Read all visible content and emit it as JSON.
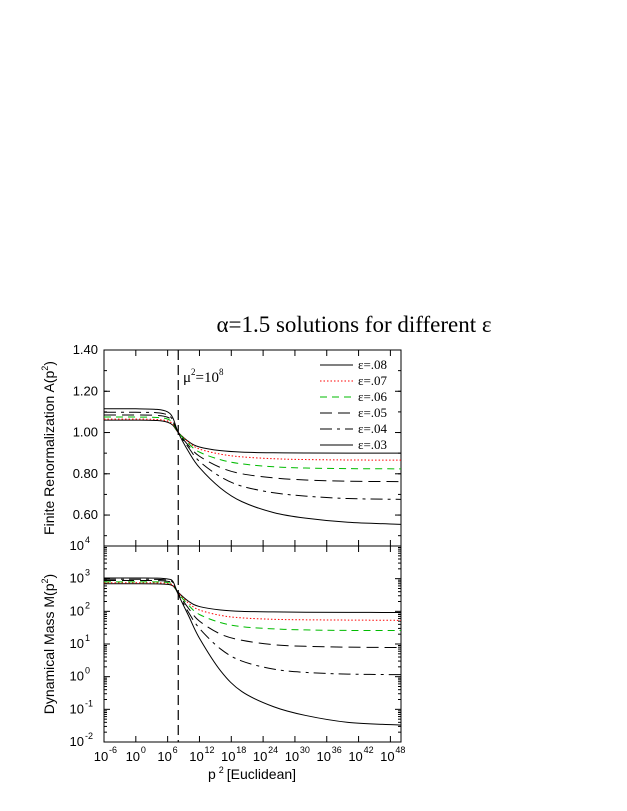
{
  "title": "α=1.5 solutions for different ε",
  "xlabel": "p 2 [Euclidean]",
  "annotation": "μ2=108",
  "chart_data": [
    {
      "type": "line",
      "panel": "top",
      "ylabel": "Finite Renormalization A(p2)",
      "xscale": "log10",
      "xlim": [
        -6,
        50
      ],
      "ylim": [
        0.45,
        1.4
      ],
      "yticks": [
        "0.60",
        "0.80",
        "1.00",
        "1.20",
        "1.40"
      ],
      "ytick_values": [
        0.6,
        0.8,
        1.0,
        1.2,
        1.4
      ],
      "xticks": [
        -6,
        0,
        6,
        12,
        18,
        24,
        30,
        36,
        42,
        48
      ],
      "vline_x": 8,
      "series": [
        {
          "name": "ε=.08",
          "color": "#000000",
          "dash": "",
          "log10_p2": [
            -6,
            0,
            4,
            6,
            7,
            8,
            10,
            12,
            16,
            20,
            26,
            32,
            40,
            50
          ],
          "values": [
            1.06,
            1.06,
            1.058,
            1.05,
            1.035,
            1.0,
            0.955,
            0.93,
            0.912,
            0.905,
            0.902,
            0.901,
            0.9,
            0.9
          ]
        },
        {
          "name": "ε=.07",
          "color": "#ff0000",
          "dash": "1.5,2",
          "log10_p2": [
            -6,
            0,
            4,
            6,
            7,
            8,
            10,
            12,
            16,
            20,
            26,
            32,
            40,
            50
          ],
          "values": [
            1.065,
            1.065,
            1.063,
            1.056,
            1.04,
            1.0,
            0.952,
            0.92,
            0.895,
            0.882,
            0.873,
            0.869,
            0.867,
            0.866
          ]
        },
        {
          "name": "ε=.06",
          "color": "#00bb00",
          "dash": "7,5",
          "log10_p2": [
            -6,
            0,
            4,
            6,
            7,
            8,
            10,
            12,
            16,
            20,
            26,
            32,
            40,
            50
          ],
          "values": [
            1.075,
            1.075,
            1.073,
            1.065,
            1.045,
            1.0,
            0.945,
            0.905,
            0.868,
            0.848,
            0.834,
            0.828,
            0.825,
            0.824
          ]
        },
        {
          "name": "ε=.05",
          "color": "#000000",
          "dash": "12,6",
          "log10_p2": [
            -6,
            0,
            4,
            6,
            7,
            8,
            10,
            12,
            16,
            20,
            26,
            32,
            40,
            50
          ],
          "values": [
            1.085,
            1.085,
            1.083,
            1.074,
            1.052,
            1.0,
            0.935,
            0.885,
            0.83,
            0.8,
            0.78,
            0.77,
            0.764,
            0.762
          ]
        },
        {
          "name": "ε=.04",
          "color": "#000000",
          "dash": "12,5,3,5",
          "log10_p2": [
            -6,
            0,
            4,
            6,
            7,
            8,
            10,
            12,
            16,
            20,
            26,
            32,
            40,
            50
          ],
          "values": [
            1.098,
            1.098,
            1.096,
            1.085,
            1.06,
            1.0,
            0.925,
            0.86,
            0.785,
            0.74,
            0.708,
            0.692,
            0.68,
            0.676
          ]
        },
        {
          "name": "ε=.03",
          "color": "#000000",
          "dash": "",
          "log10_p2": [
            -6,
            0,
            4,
            6,
            7,
            8,
            10,
            12,
            16,
            20,
            26,
            32,
            40,
            50
          ],
          "values": [
            1.115,
            1.115,
            1.112,
            1.1,
            1.07,
            1.0,
            0.905,
            0.83,
            0.73,
            0.665,
            0.612,
            0.585,
            0.565,
            0.555
          ]
        }
      ]
    },
    {
      "type": "line",
      "panel": "bottom",
      "ylabel": "Dynamical Mass M(p2)",
      "xscale": "log10",
      "yscale": "log10",
      "xlim": [
        -6,
        50
      ],
      "ylim": [
        -2,
        4
      ],
      "yticks": [
        -2,
        -1,
        0,
        1,
        2,
        3,
        4
      ],
      "xticks": [
        -6,
        0,
        6,
        12,
        18,
        24,
        30,
        36,
        42,
        48
      ],
      "vline_x": 8,
      "series": [
        {
          "name": "ε=.08",
          "color": "#000000",
          "dash": "",
          "log10_p2": [
            -6,
            0,
            4,
            6,
            7,
            8,
            10,
            12,
            16,
            20,
            26,
            32,
            40,
            50
          ],
          "values": [
            700,
            700,
            695,
            670,
            600,
            380,
            200,
            140,
            110,
            100,
            96,
            94,
            93,
            92
          ]
        },
        {
          "name": "ε=.07",
          "color": "#ff0000",
          "dash": "1.5,2",
          "log10_p2": [
            -6,
            0,
            4,
            6,
            7,
            8,
            10,
            12,
            16,
            20,
            26,
            32,
            40,
            50
          ],
          "values": [
            750,
            750,
            745,
            715,
            630,
            370,
            175,
            110,
            75,
            63,
            57,
            55,
            54,
            53
          ]
        },
        {
          "name": "ε=.06",
          "color": "#00bb00",
          "dash": "7,5",
          "log10_p2": [
            -6,
            0,
            4,
            6,
            7,
            8,
            10,
            12,
            16,
            20,
            26,
            32,
            40,
            50
          ],
          "values": [
            800,
            800,
            795,
            760,
            660,
            360,
            150,
            80,
            45,
            34,
            29,
            27,
            26,
            26
          ]
        },
        {
          "name": "ε=.05",
          "color": "#000000",
          "dash": "12,6",
          "log10_p2": [
            -6,
            0,
            4,
            6,
            7,
            8,
            10,
            12,
            16,
            20,
            26,
            32,
            40,
            50
          ],
          "values": [
            880,
            880,
            872,
            830,
            710,
            350,
            120,
            50,
            20,
            13,
            9.5,
            8.5,
            8.0,
            7.8
          ]
        },
        {
          "name": "ε=.04",
          "color": "#000000",
          "dash": "12,5,3,5",
          "log10_p2": [
            -6,
            0,
            4,
            6,
            7,
            8,
            10,
            12,
            16,
            20,
            26,
            32,
            40,
            50
          ],
          "values": [
            960,
            960,
            950,
            900,
            760,
            340,
            90,
            30,
            7,
            3.0,
            1.7,
            1.35,
            1.2,
            1.15
          ]
        },
        {
          "name": "ε=.03",
          "color": "#000000",
          "dash": "",
          "log10_p2": [
            -6,
            0,
            4,
            6,
            7,
            8,
            10,
            12,
            16,
            20,
            26,
            32,
            40,
            50
          ],
          "values": [
            1050,
            1050,
            1040,
            980,
            820,
            330,
            70,
            15,
            1.5,
            0.35,
            0.12,
            0.065,
            0.04,
            0.033
          ]
        }
      ]
    }
  ]
}
